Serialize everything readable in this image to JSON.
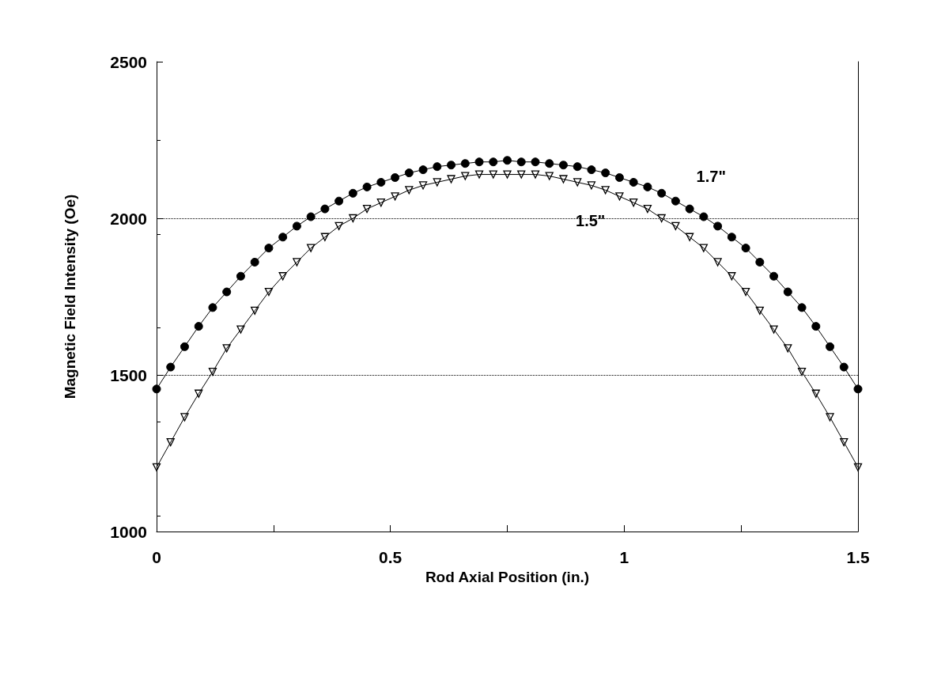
{
  "chart_data": {
    "type": "line",
    "xlabel": "Rod Axial Position (in.)",
    "ylabel": "Magnetic Field Intensity (Oe)",
    "x": [
      0,
      0.03,
      0.06,
      0.09,
      0.12,
      0.15,
      0.18,
      0.21,
      0.24,
      0.27,
      0.3,
      0.33,
      0.36,
      0.39,
      0.42,
      0.45,
      0.48,
      0.51,
      0.54,
      0.57,
      0.6,
      0.63,
      0.66,
      0.69,
      0.72,
      0.75,
      0.78,
      0.81,
      0.84,
      0.87,
      0.9,
      0.93,
      0.96,
      0.99,
      1.02,
      1.05,
      1.08,
      1.11,
      1.14,
      1.17,
      1.2,
      1.23,
      1.26,
      1.29,
      1.32,
      1.35,
      1.38,
      1.41,
      1.44,
      1.47,
      1.5
    ],
    "series": [
      {
        "name": "1.7\"",
        "color": "#000000",
        "marker": "circle",
        "values": [
          1455,
          1525,
          1590,
          1655,
          1715,
          1765,
          1815,
          1860,
          1905,
          1940,
          1975,
          2005,
          2030,
          2055,
          2080,
          2100,
          2115,
          2130,
          2145,
          2155,
          2165,
          2170,
          2175,
          2180,
          2180,
          2185,
          2180,
          2180,
          2175,
          2170,
          2165,
          2155,
          2145,
          2130,
          2115,
          2100,
          2080,
          2055,
          2030,
          2005,
          1975,
          1940,
          1905,
          1860,
          1815,
          1765,
          1715,
          1655,
          1590,
          1525,
          1455
        ]
      },
      {
        "name": "1.5\"",
        "color": "#000000",
        "marker": "triangle",
        "values": [
          1205,
          1285,
          1365,
          1440,
          1510,
          1585,
          1645,
          1705,
          1765,
          1815,
          1860,
          1905,
          1940,
          1975,
          2000,
          2030,
          2050,
          2070,
          2090,
          2105,
          2115,
          2125,
          2135,
          2140,
          2140,
          2140,
          2140,
          2140,
          2135,
          2125,
          2115,
          2105,
          2090,
          2070,
          2050,
          2030,
          2000,
          1975,
          1940,
          1905,
          1860,
          1815,
          1765,
          1705,
          1645,
          1585,
          1510,
          1440,
          1365,
          1285,
          1205
        ]
      }
    ],
    "xlim": [
      0,
      1.5
    ],
    "xticks": [
      0,
      {
        "value": 0.25,
        "label": null
      },
      0.5,
      {
        "value": 0.75,
        "label": null
      },
      1,
      {
        "value": 1.25,
        "label": null
      },
      1.5
    ],
    "ylim": [
      1000,
      2500
    ],
    "yticks": [
      1000,
      1500,
      2000,
      2500
    ],
    "grid": "y",
    "line_style": "solid"
  }
}
